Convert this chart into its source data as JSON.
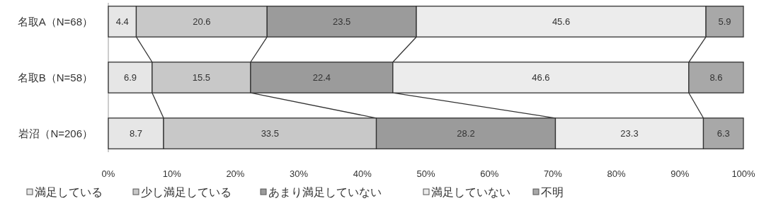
{
  "chart_data": {
    "type": "bar",
    "orientation": "horizontal",
    "stacked": true,
    "categories": [
      "名取A（N=68）",
      "名取B（N=58）",
      "岩沼（N=206）"
    ],
    "series": [
      {
        "name": "満足している",
        "color": "#e6e6e6",
        "values": [
          4.4,
          6.9,
          8.7
        ]
      },
      {
        "name": "少し満足している",
        "color": "#c8c8c8",
        "values": [
          20.6,
          15.5,
          33.5
        ]
      },
      {
        "name": "あまり満足していない",
        "color": "#9b9b9b",
        "values": [
          23.5,
          22.4,
          28.2
        ]
      },
      {
        "name": "満足していない",
        "color": "#ececec",
        "values": [
          45.6,
          46.6,
          23.3
        ]
      },
      {
        "name": "不明",
        "color": "#a8a8a8",
        "values": [
          5.9,
          8.6,
          6.3
        ]
      }
    ],
    "xlim": [
      0,
      100
    ],
    "xticks": [
      {
        "value": 0,
        "label": "0%"
      },
      {
        "value": 10,
        "label": "10%"
      },
      {
        "value": 20,
        "label": "20%"
      },
      {
        "value": 30,
        "label": "30%"
      },
      {
        "value": 40,
        "label": "40%"
      },
      {
        "value": 50,
        "label": "50%"
      },
      {
        "value": 60,
        "label": "60%"
      },
      {
        "value": 70,
        "label": "70%"
      },
      {
        "value": 80,
        "label": "80%"
      },
      {
        "value": 90,
        "label": "90%"
      },
      {
        "value": 100,
        "label": "100%"
      }
    ],
    "data_labels": true,
    "legend": "bottom",
    "grid": false
  }
}
